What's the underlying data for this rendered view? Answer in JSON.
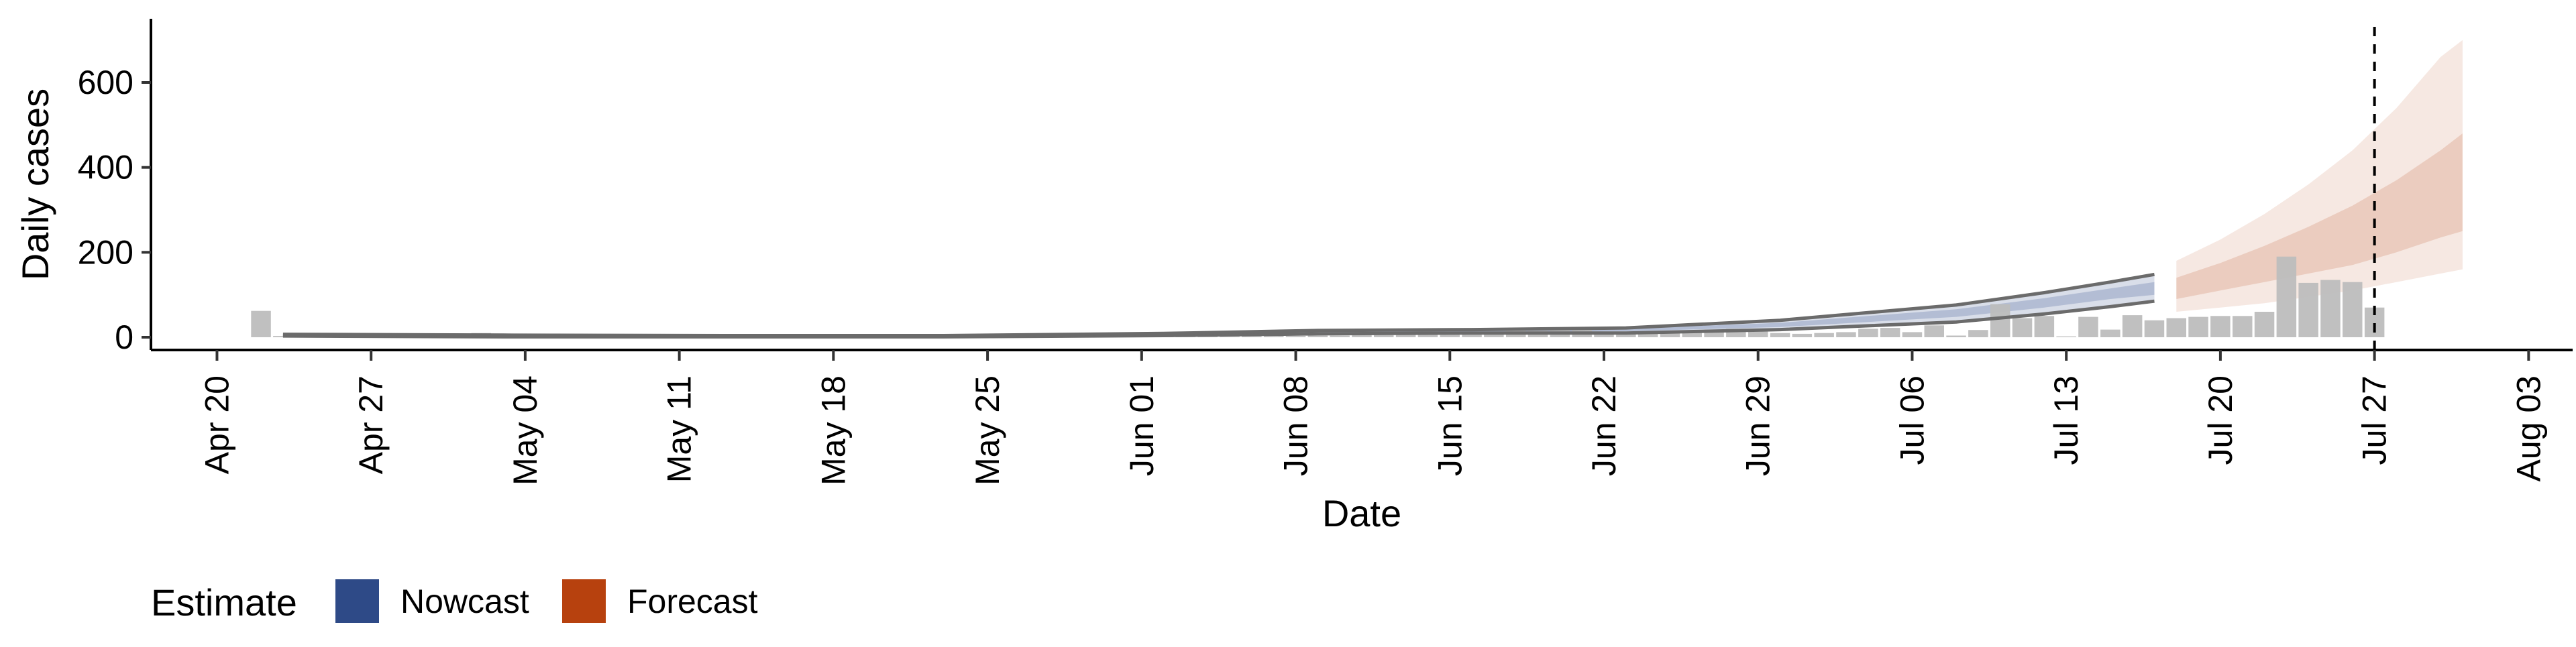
{
  "chart_data": {
    "type": "bar",
    "xlabel": "Date",
    "ylabel": "Daily cases",
    "x_type": "date",
    "xlim": [
      "2020-04-17",
      "2020-08-05"
    ],
    "ylim": [
      -30,
      750
    ],
    "x_ticks": [
      {
        "date": "2020-04-20",
        "label": "Apr 20"
      },
      {
        "date": "2020-04-27",
        "label": "Apr 27"
      },
      {
        "date": "2020-05-04",
        "label": "May 04"
      },
      {
        "date": "2020-05-11",
        "label": "May 11"
      },
      {
        "date": "2020-05-18",
        "label": "May 18"
      },
      {
        "date": "2020-05-25",
        "label": "May 25"
      },
      {
        "date": "2020-06-01",
        "label": "Jun 01"
      },
      {
        "date": "2020-06-08",
        "label": "Jun 08"
      },
      {
        "date": "2020-06-15",
        "label": "Jun 15"
      },
      {
        "date": "2020-06-22",
        "label": "Jun 22"
      },
      {
        "date": "2020-06-29",
        "label": "Jun 29"
      },
      {
        "date": "2020-07-06",
        "label": "Jul 06"
      },
      {
        "date": "2020-07-13",
        "label": "Jul 13"
      },
      {
        "date": "2020-07-20",
        "label": "Jul 20"
      },
      {
        "date": "2020-07-27",
        "label": "Jul 27"
      },
      {
        "date": "2020-08-03",
        "label": "Aug 03"
      }
    ],
    "y_ticks": [
      0,
      200,
      400,
      600
    ],
    "grid": false,
    "vline": {
      "date": "2020-07-27",
      "style": "dashed"
    },
    "observed_cases": {
      "color": "#bdbdbd",
      "dates": [
        "2020-04-22",
        "2020-04-23",
        "2020-04-24",
        "2020-04-25",
        "2020-04-26",
        "2020-04-27",
        "2020-04-28",
        "2020-04-29",
        "2020-04-30",
        "2020-05-01",
        "2020-05-02",
        "2020-05-03",
        "2020-05-04",
        "2020-05-05",
        "2020-05-06",
        "2020-05-07",
        "2020-05-08",
        "2020-05-09",
        "2020-05-10",
        "2020-05-11",
        "2020-05-12",
        "2020-05-13",
        "2020-05-14",
        "2020-05-15",
        "2020-05-16",
        "2020-05-17",
        "2020-05-18",
        "2020-05-19",
        "2020-05-20",
        "2020-05-21",
        "2020-05-22",
        "2020-05-23",
        "2020-05-24",
        "2020-05-25",
        "2020-05-26",
        "2020-05-27",
        "2020-05-28",
        "2020-05-29",
        "2020-05-30",
        "2020-05-31",
        "2020-06-01",
        "2020-06-02",
        "2020-06-03",
        "2020-06-04",
        "2020-06-05",
        "2020-06-06",
        "2020-06-07",
        "2020-06-08",
        "2020-06-09",
        "2020-06-10",
        "2020-06-11",
        "2020-06-12",
        "2020-06-13",
        "2020-06-14",
        "2020-06-15",
        "2020-06-16",
        "2020-06-17",
        "2020-06-18",
        "2020-06-19",
        "2020-06-20",
        "2020-06-21",
        "2020-06-22",
        "2020-06-23",
        "2020-06-24",
        "2020-06-25",
        "2020-06-26",
        "2020-06-27",
        "2020-06-28",
        "2020-06-29",
        "2020-06-30",
        "2020-07-01",
        "2020-07-02",
        "2020-07-03",
        "2020-07-04",
        "2020-07-05",
        "2020-07-06",
        "2020-07-07",
        "2020-07-08",
        "2020-07-09",
        "2020-07-10",
        "2020-07-11",
        "2020-07-12",
        "2020-07-13",
        "2020-07-14",
        "2020-07-15",
        "2020-07-16",
        "2020-07-17",
        "2020-07-18",
        "2020-07-19",
        "2020-07-20",
        "2020-07-21",
        "2020-07-22",
        "2020-07-23",
        "2020-07-24",
        "2020-07-25",
        "2020-07-26",
        "2020-07-27"
      ],
      "values": [
        62,
        3,
        2,
        2,
        3,
        2,
        2,
        2,
        3,
        2,
        10,
        2,
        2,
        2,
        2,
        2,
        1,
        1,
        1,
        1,
        1,
        1,
        1,
        1,
        1,
        1,
        1,
        1,
        1,
        1,
        1,
        1,
        1,
        1,
        1,
        1,
        1,
        1,
        1,
        1,
        2,
        2,
        2,
        2,
        2,
        3,
        3,
        3,
        4,
        4,
        5,
        5,
        6,
        7,
        8,
        10,
        12,
        18,
        15,
        20,
        22,
        8,
        7,
        10,
        12,
        15,
        18,
        20,
        18,
        10,
        8,
        10,
        12,
        20,
        22,
        12,
        28,
        4,
        17,
        78,
        45,
        50,
        2,
        48,
        18,
        52,
        40,
        45,
        48,
        50,
        50,
        60,
        190,
        128,
        135,
        130,
        70
      ]
    },
    "nowcast": {
      "color": "#2e4a87",
      "dates": [
        "2020-04-23",
        "2020-05-03",
        "2020-05-13",
        "2020-05-23",
        "2020-06-02",
        "2020-06-09",
        "2020-06-16",
        "2020-06-23",
        "2020-06-30",
        "2020-07-04",
        "2020-07-08",
        "2020-07-12",
        "2020-07-15",
        "2020-07-17"
      ],
      "median": [
        4,
        3,
        2,
        2,
        6,
        12,
        14,
        16,
        28,
        42,
        56,
        80,
        102,
        115
      ],
      "lower_90": [
        3,
        1,
        1,
        1,
        4,
        8,
        10,
        10,
        18,
        27,
        36,
        55,
        72,
        85
      ],
      "upper_90": [
        7,
        5,
        4,
        4,
        9,
        16,
        18,
        22,
        40,
        58,
        76,
        105,
        130,
        148
      ],
      "lower_50": [
        3,
        2,
        1,
        1,
        5,
        10,
        12,
        14,
        24,
        36,
        48,
        70,
        90,
        100
      ],
      "upper_50": [
        5,
        4,
        3,
        3,
        7,
        14,
        16,
        20,
        34,
        50,
        66,
        92,
        115,
        130
      ]
    },
    "forecast": {
      "color": "#b7410e",
      "dates": [
        "2020-07-18",
        "2020-07-20",
        "2020-07-22",
        "2020-07-24",
        "2020-07-26",
        "2020-07-28",
        "2020-07-30",
        "2020-07-31"
      ],
      "median": [
        115,
        140,
        165,
        195,
        225,
        265,
        310,
        330
      ],
      "lower_90": [
        60,
        70,
        80,
        95,
        110,
        130,
        150,
        160
      ],
      "upper_90": [
        180,
        230,
        290,
        360,
        440,
        540,
        660,
        700
      ],
      "lower_50": [
        90,
        110,
        130,
        150,
        170,
        200,
        235,
        250
      ],
      "upper_50": [
        140,
        175,
        215,
        260,
        310,
        370,
        440,
        480
      ]
    },
    "legend": {
      "title": "Estimate",
      "position": "bottom-left",
      "items": [
        {
          "label": "Nowcast",
          "color": "#2e4a87"
        },
        {
          "label": "Forecast",
          "color": "#b7410e"
        }
      ]
    }
  }
}
